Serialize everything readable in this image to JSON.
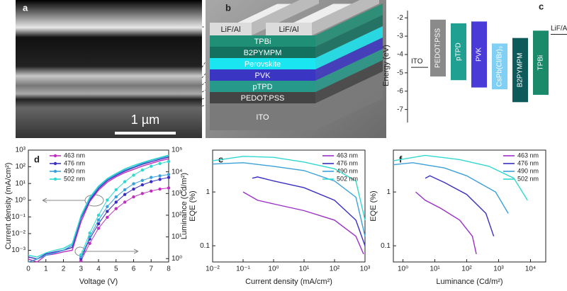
{
  "panel_a": {
    "label": "a",
    "scale_bar": "1 µm"
  },
  "panel_b": {
    "label": "b",
    "layers": [
      "LiF/Al",
      "LiF/Al",
      "TPBi",
      "B2PYMPM",
      "Perovskite",
      "PVK",
      "pTPD",
      "PEDOT:PSS",
      "ITO"
    ]
  },
  "chart_data": [
    {
      "type": "range",
      "panel": "c",
      "ylabel": "Energy (eV)",
      "categories": [
        "PEDOT:PSS",
        "pTPD",
        "PVK",
        "CsPb(Cl/Br)₃",
        "B2PYMPM",
        "TPBi"
      ],
      "high": [
        -2.1,
        -2.3,
        -2.2,
        -3.4,
        -3.1,
        -2.7
      ],
      "low": [
        -5.2,
        -5.4,
        -5.8,
        -5.9,
        -6.6,
        -6.2
      ],
      "colors": [
        "#8a8a8a",
        "#1fa090",
        "#4a3ad8",
        "#7fd0f4",
        "#0e5a5a",
        "#1a8a6a"
      ],
      "electrodes": [
        {
          "label": "ITO",
          "value": -4.7
        },
        {
          "label": "LiF/Al",
          "value": -2.9
        }
      ],
      "ylim": [
        -7.4,
        -1.8
      ],
      "yticks": [
        -2,
        -3,
        -4,
        -5,
        -6,
        -7
      ]
    },
    {
      "type": "line",
      "panel": "d",
      "xlabel": "Voltage (V)",
      "ylabel": "Current density (mA/cm²)",
      "y2label": "Luminance (Cd/m²)",
      "yscale": "log",
      "y2scale": "log",
      "legend": "upper left",
      "x": [
        0,
        0.5,
        1,
        1.5,
        2,
        2.5,
        3,
        3.5,
        4,
        4.5,
        5,
        5.5,
        6,
        6.5,
        7,
        7.5,
        8
      ],
      "xlim": [
        0,
        8
      ],
      "xticks": [
        0,
        1,
        2,
        3,
        4,
        5,
        6,
        7,
        8
      ],
      "ylim": [
        0.0002,
        1000
      ],
      "yticks": [
        {
          "value": 0.001,
          "label": "10⁻³"
        },
        {
          "value": 0.01,
          "label": "10⁻²"
        },
        {
          "value": 0.1,
          "label": "10⁻¹"
        },
        {
          "value": 1,
          "label": "10⁰"
        },
        {
          "value": 10,
          "label": "10¹"
        },
        {
          "value": 100,
          "label": "10²"
        },
        {
          "value": 1000,
          "label": "10³"
        }
      ],
      "y2lim": [
        0.7,
        100000
      ],
      "y2ticks": [
        {
          "value": 1,
          "label": "10⁰"
        },
        {
          "value": 10,
          "label": "10¹"
        },
        {
          "value": 100,
          "label": "10²"
        },
        {
          "value": 1000,
          "label": "10³"
        },
        {
          "value": 10000,
          "label": "10⁴"
        },
        {
          "value": 100000,
          "label": "10⁵"
        }
      ],
      "series": [
        {
          "name": "463 nm",
          "color": "#c030c0",
          "values": [
            0.0003,
            0.0002,
            0.0005,
            0.0006,
            0.0008,
            0.001,
            0.05,
            0.8,
            4,
            12,
            25,
            45,
            70,
            110,
            160,
            230,
            300
          ],
          "luminance": [
            null,
            null,
            null,
            null,
            null,
            null,
            0.8,
            5,
            25,
            80,
            200,
            400,
            700,
            1000,
            1300,
            1600,
            1800
          ]
        },
        {
          "name": "476 nm",
          "color": "#3a2fc0",
          "values": [
            0.0004,
            0.0003,
            0.0006,
            0.0008,
            0.001,
            0.0015,
            0.08,
            1,
            5,
            15,
            30,
            55,
            90,
            140,
            200,
            280,
            380
          ],
          "luminance": [
            null,
            null,
            null,
            null,
            null,
            null,
            1,
            8,
            40,
            150,
            400,
            900,
            1600,
            2500,
            3500,
            4500,
            5500
          ]
        },
        {
          "name": "490 nm",
          "color": "#3aa0d8",
          "values": [
            0.0002,
            0.0003,
            0.0005,
            0.0007,
            0.001,
            0.002,
            0.1,
            1.2,
            6,
            18,
            35,
            65,
            100,
            160,
            240,
            330,
            450
          ],
          "luminance": [
            null,
            null,
            null,
            null,
            null,
            null,
            1.2,
            10,
            60,
            250,
            700,
            1500,
            2800,
            4000,
            5500,
            6500,
            7500
          ]
        },
        {
          "name": "502 nm",
          "color": "#30d8d0",
          "values": [
            0.0005,
            0.0004,
            0.0007,
            0.001,
            0.0013,
            0.0025,
            0.12,
            1.5,
            7,
            20,
            40,
            75,
            120,
            180,
            260,
            360,
            500
          ],
          "luminance": [
            null,
            null,
            null,
            null,
            null,
            null,
            1.5,
            15,
            100,
            500,
            1500,
            3500,
            7000,
            12000,
            18000,
            24000,
            30000
          ]
        }
      ]
    },
    {
      "type": "line",
      "panel": "e",
      "xlabel": "Current density (mA/cm²)",
      "ylabel": "EQE (%)",
      "xscale": "log",
      "yscale": "log",
      "legend": "upper right",
      "xlim": [
        0.01,
        1000
      ],
      "xticks": [
        {
          "value": 0.01,
          "label": "10⁻²"
        },
        {
          "value": 0.1,
          "label": "10⁻¹"
        },
        {
          "value": 1,
          "label": "10⁰"
        },
        {
          "value": 10,
          "label": "10¹"
        },
        {
          "value": 100,
          "label": "10²"
        },
        {
          "value": 1000,
          "label": "10³"
        }
      ],
      "ylim": [
        0.05,
        6
      ],
      "yticks": [
        0.1,
        1
      ],
      "series": [
        {
          "name": "463 nm",
          "color": "#9a30c8",
          "x": [
            0.1,
            0.3,
            1,
            10,
            100,
            500,
            900
          ],
          "values": [
            1,
            0.7,
            0.6,
            0.45,
            0.3,
            0.15,
            0.07
          ]
        },
        {
          "name": "476 nm",
          "color": "#3a2fc0",
          "x": [
            0.2,
            0.3,
            1,
            10,
            100,
            500,
            1000
          ],
          "values": [
            1.8,
            1.9,
            1.6,
            1.2,
            0.7,
            0.3,
            0.1
          ]
        },
        {
          "name": "490 nm",
          "color": "#3aa0d8",
          "x": [
            0.01,
            0.1,
            1,
            10,
            100,
            500,
            1000
          ],
          "values": [
            3.3,
            3.5,
            3,
            2.5,
            1.6,
            0.8,
            0.15
          ]
        },
        {
          "name": "502 nm",
          "color": "#30d8d0",
          "x": [
            0.01,
            0.1,
            1,
            10,
            100,
            500,
            1000
          ],
          "values": [
            3.8,
            4.6,
            4.4,
            3.6,
            2.7,
            1.6,
            0.3
          ]
        }
      ]
    },
    {
      "type": "line",
      "panel": "f",
      "xlabel": "Luminance (Cd/m²)",
      "ylabel": "EQE (%)",
      "xscale": "log",
      "yscale": "log",
      "legend": "upper right",
      "xlim": [
        0.5,
        30000
      ],
      "xticks": [
        {
          "value": 1,
          "label": "10⁰"
        },
        {
          "value": 10,
          "label": "10¹"
        },
        {
          "value": 100,
          "label": "10²"
        },
        {
          "value": 1000,
          "label": "10³"
        },
        {
          "value": 10000,
          "label": "10⁴"
        }
      ],
      "ylim": [
        0.05,
        6
      ],
      "yticks": [
        0.1,
        1
      ],
      "series": [
        {
          "name": "463 nm",
          "color": "#9a30c8",
          "x": [
            2.5,
            5,
            15,
            60,
            150,
            200
          ],
          "values": [
            1,
            0.7,
            0.5,
            0.3,
            0.15,
            0.07
          ]
        },
        {
          "name": "476 nm",
          "color": "#3a2fc0",
          "x": [
            5,
            7,
            20,
            100,
            400,
            700
          ],
          "values": [
            1.8,
            2,
            1.5,
            0.9,
            0.4,
            0.15
          ]
        },
        {
          "name": "490 nm",
          "color": "#3aa0d8",
          "x": [
            0.5,
            2,
            20,
            100,
            800,
            2000
          ],
          "values": [
            3.2,
            3.5,
            2.8,
            2,
            1,
            0.4
          ]
        },
        {
          "name": "502 nm",
          "color": "#30d8d0",
          "x": [
            0.5,
            5,
            60,
            500,
            3000,
            8000
          ],
          "values": [
            3.8,
            4.8,
            4,
            3,
            1.8,
            0.7
          ]
        }
      ]
    }
  ]
}
